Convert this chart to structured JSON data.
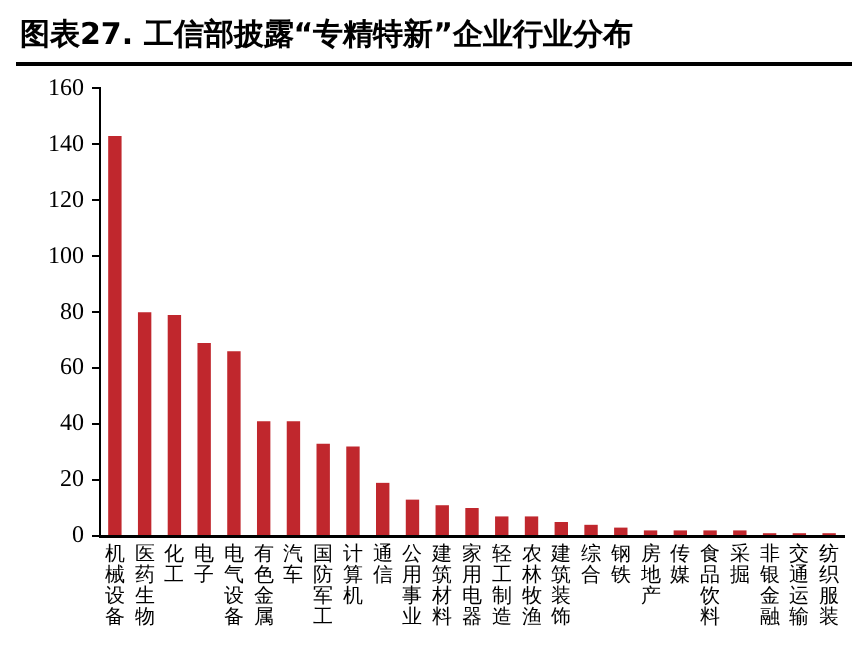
{
  "chart_data": {
    "type": "bar",
    "title": "图表27. 工信部披露“专精特新”企业行业分布",
    "categories": [
      "机械设备",
      "医药生物",
      "化工",
      "电子",
      "电气设备",
      "有色金属",
      "汽车",
      "国防军工",
      "计算机",
      "通信",
      "公用事业",
      "建筑材料",
      "家用电器",
      "轻工制造",
      "农林牧渔",
      "建筑装饰",
      "综合",
      "钢铁",
      "房地产",
      "传媒",
      "食品饮料",
      "采掘",
      "非银金融",
      "交通运输",
      "纺织服装"
    ],
    "values": [
      143,
      80,
      79,
      69,
      66,
      41,
      41,
      33,
      32,
      19,
      13,
      11,
      10,
      7,
      7,
      5,
      4,
      3,
      2,
      2,
      2,
      2,
      1,
      1,
      1
    ],
    "color": "#c0272d",
    "ylim": [
      0,
      160
    ],
    "yticks": [
      0,
      20,
      40,
      60,
      80,
      100,
      120,
      140,
      160
    ],
    "grid": false,
    "legend": false
  }
}
